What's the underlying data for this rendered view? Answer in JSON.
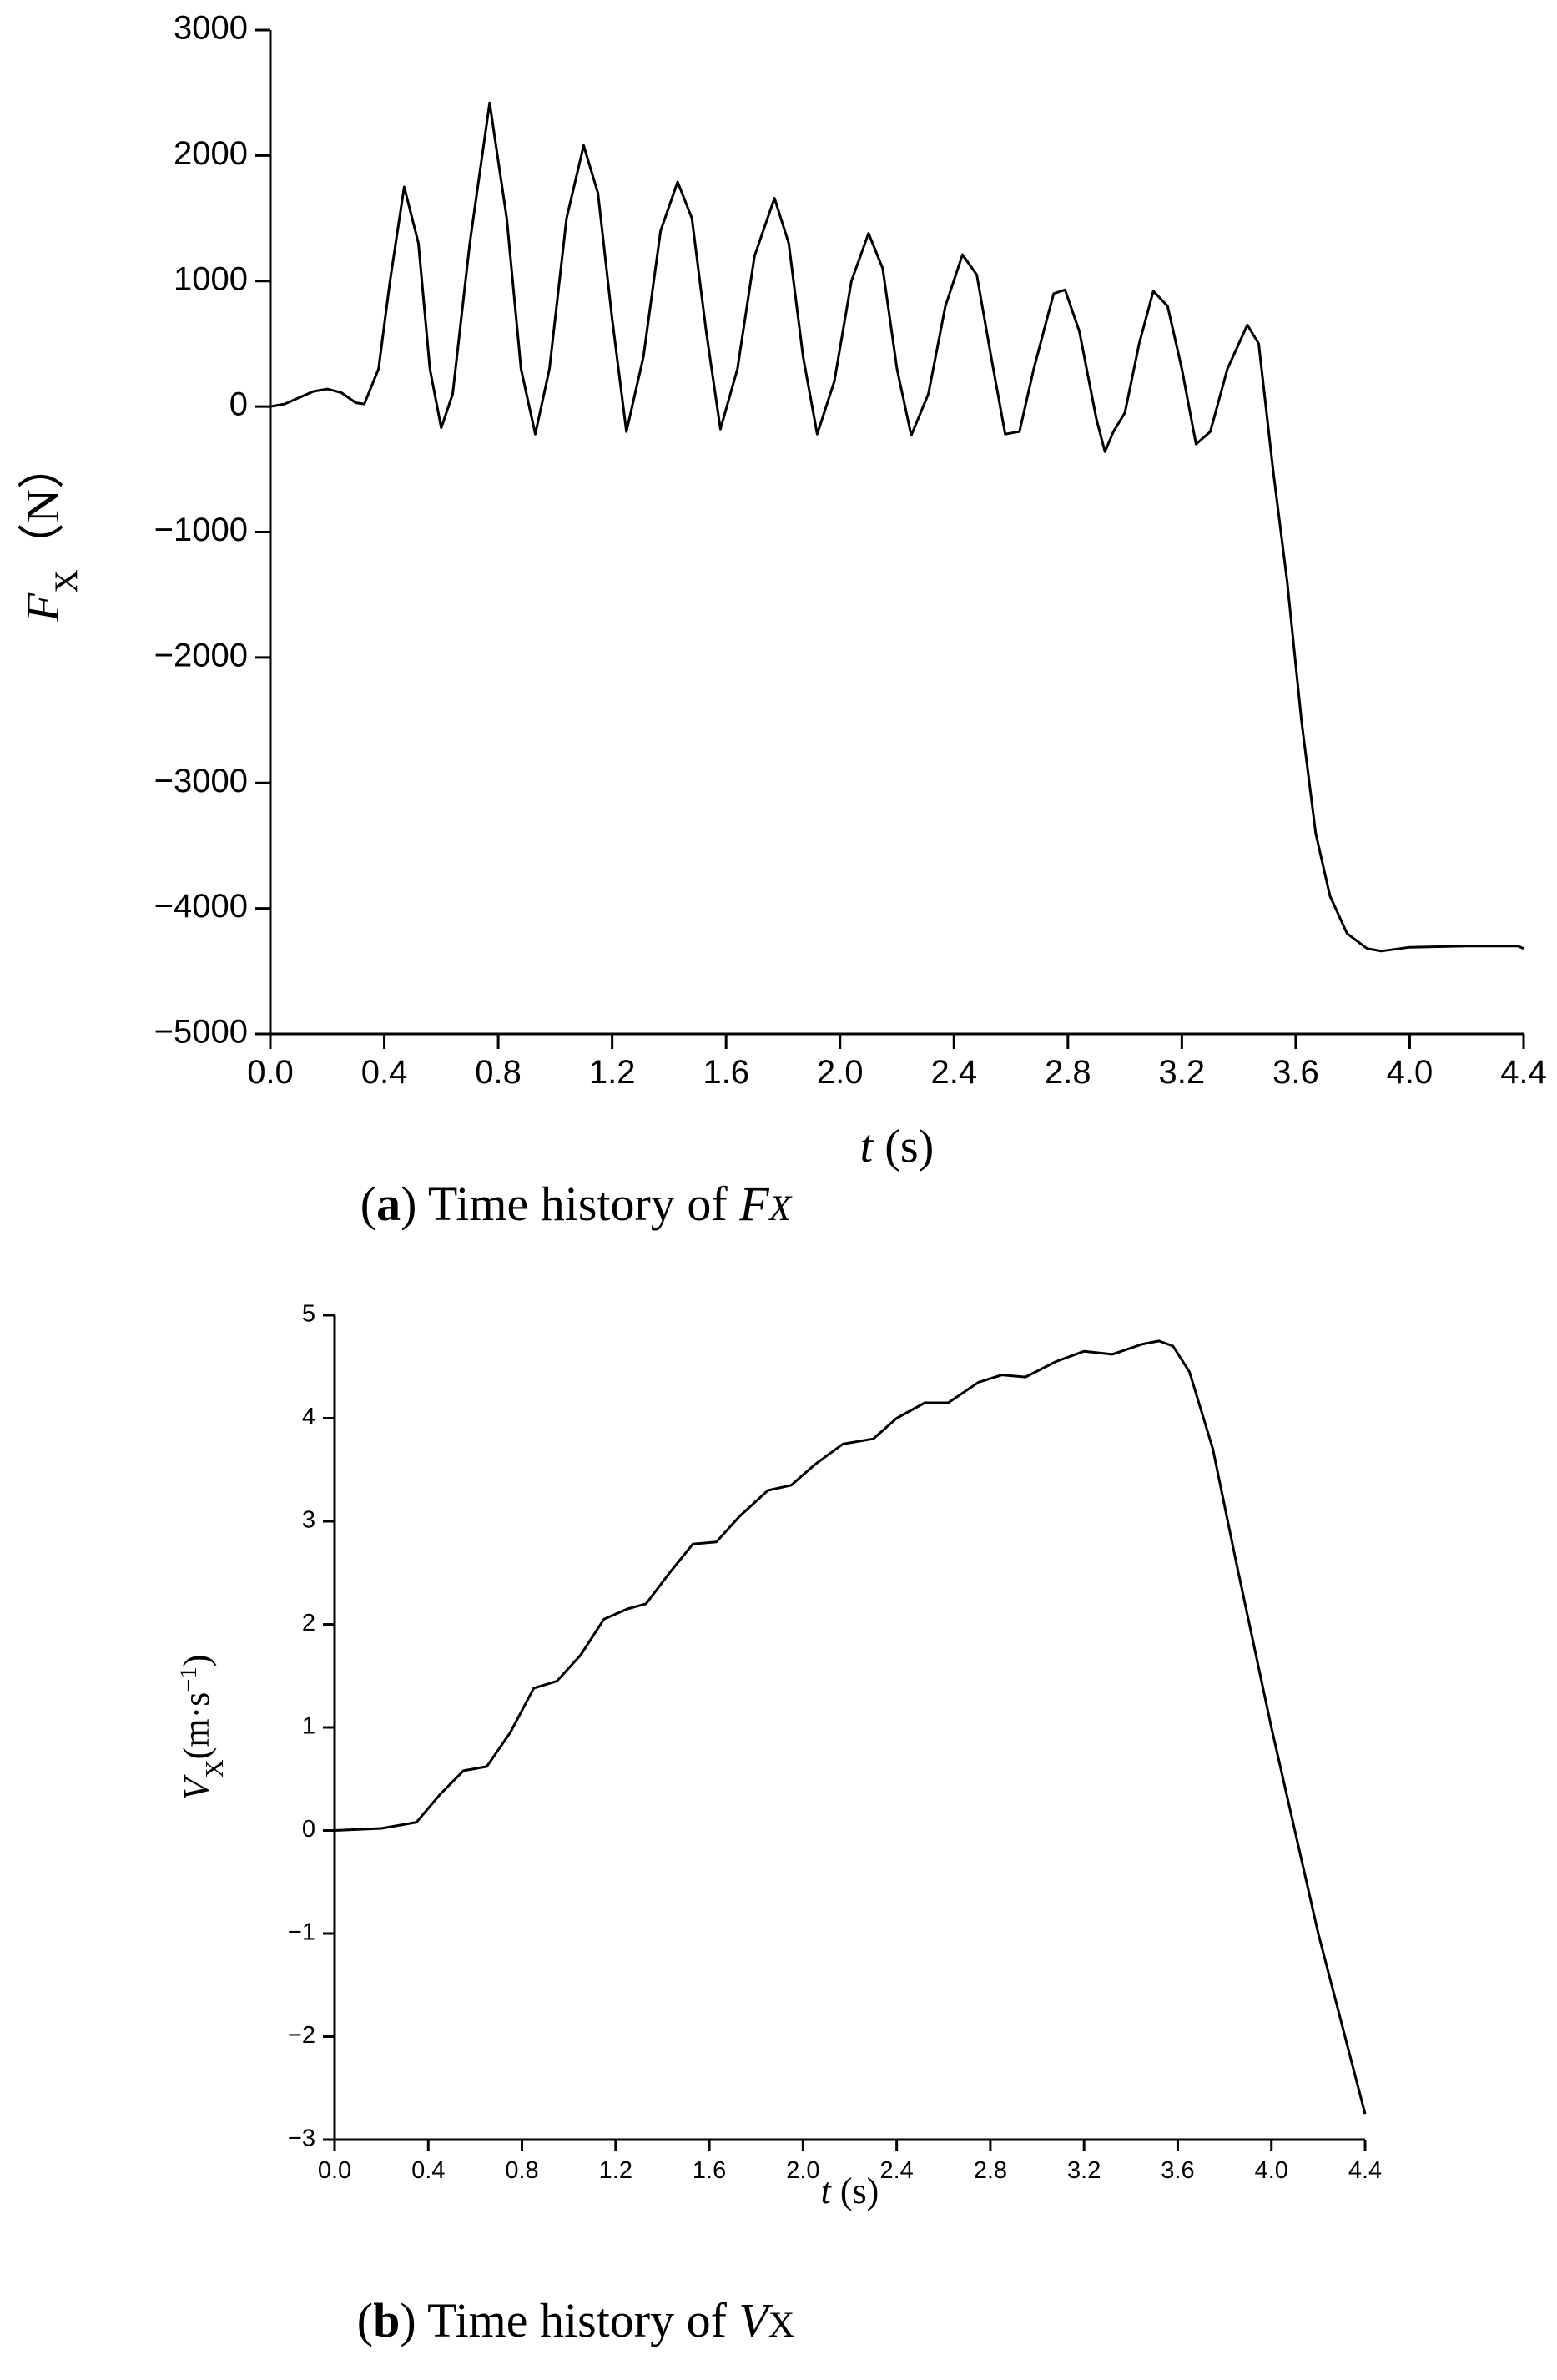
{
  "chart_data": [
    {
      "type": "line",
      "xlabel_parts": [
        "t",
        " (s)"
      ],
      "ylabel_parts": [
        "F",
        "X",
        "（N）"
      ],
      "caption_parts": [
        "(",
        "a",
        ") Time history of ",
        "F",
        "X"
      ],
      "color": "#000000",
      "xlim": [
        0,
        4.4
      ],
      "xticks": [
        {
          "value": 0,
          "label": "0.0"
        },
        0.4,
        0.8,
        1.2,
        1.6,
        {
          "value": 2,
          "label": "2.0"
        },
        2.4,
        2.8,
        3.2,
        3.6,
        {
          "value": 4,
          "label": "4.0"
        },
        4.4
      ],
      "ylim": [
        -5000,
        3000
      ],
      "yticks": [
        {
          "value": -5000,
          "label": "−5000"
        },
        {
          "value": -4000,
          "label": "−4000"
        },
        {
          "value": -3000,
          "label": "−3000"
        },
        {
          "value": -2000,
          "label": "−2000"
        },
        {
          "value": -1000,
          "label": "−1000"
        },
        0,
        1000,
        2000,
        3000
      ],
      "x": [
        0,
        0.05,
        0.1,
        0.15,
        0.2,
        0.25,
        0.3,
        0.33,
        0.38,
        0.42,
        0.47,
        0.52,
        0.56,
        0.6,
        0.64,
        0.7,
        0.77,
        0.83,
        0.88,
        0.93,
        0.98,
        1.04,
        1.1,
        1.15,
        1.2,
        1.25,
        1.31,
        1.37,
        1.43,
        1.48,
        1.53,
        1.58,
        1.64,
        1.7,
        1.77,
        1.82,
        1.87,
        1.92,
        1.98,
        2.04,
        2.1,
        2.15,
        2.2,
        2.25,
        2.31,
        2.37,
        2.43,
        2.48,
        2.53,
        2.58,
        2.63,
        2.68,
        2.75,
        2.79,
        2.84,
        2.9,
        2.93,
        2.96,
        3.0,
        3.05,
        3.1,
        3.15,
        3.2,
        3.25,
        3.3,
        3.36,
        3.43,
        3.47,
        3.52,
        3.57,
        3.62,
        3.67,
        3.72,
        3.78,
        3.85,
        3.9,
        4.0,
        4.2,
        4.38,
        4.4
      ],
      "values": [
        0,
        20,
        70,
        120,
        140,
        110,
        30,
        20,
        300,
        1000,
        1750,
        1300,
        300,
        -170,
        100,
        1300,
        2420,
        1500,
        300,
        -220,
        300,
        1500,
        2080,
        1700,
        700,
        -200,
        400,
        1400,
        1790,
        1500,
        600,
        -180,
        300,
        1200,
        1660,
        1300,
        400,
        -220,
        200,
        1000,
        1380,
        1100,
        300,
        -230,
        100,
        800,
        1210,
        1050,
        400,
        -220,
        -200,
        300,
        900,
        930,
        600,
        -100,
        -360,
        -200,
        -50,
        500,
        920,
        800,
        300,
        -300,
        -200,
        300,
        650,
        500,
        -500,
        -1400,
        -2500,
        -3400,
        -3900,
        -4200,
        -4320,
        -4340,
        -4310,
        -4300,
        -4300,
        -4320
      ]
    },
    {
      "type": "line",
      "xlabel_parts": [
        "t",
        " (s)"
      ],
      "ylabel_parts": [
        "V",
        "X",
        "(m·s",
        "−1",
        ")"
      ],
      "caption_parts": [
        "(",
        "b",
        ") Time history of ",
        "V",
        "X"
      ],
      "color": "#000000",
      "xlim": [
        0,
        4.4
      ],
      "xticks": [
        {
          "value": 0,
          "label": "0.0"
        },
        0.4,
        0.8,
        1.2,
        1.6,
        {
          "value": 2,
          "label": "2.0"
        },
        2.4,
        2.8,
        3.2,
        3.6,
        {
          "value": 4,
          "label": "4.0"
        },
        4.4
      ],
      "ylim": [
        -3,
        5
      ],
      "yticks": [
        {
          "value": -3,
          "label": "−3"
        },
        {
          "value": -2,
          "label": "−2"
        },
        {
          "value": -1,
          "label": "−1"
        },
        0,
        1,
        2,
        3,
        4,
        5
      ],
      "x": [
        0,
        0.2,
        0.35,
        0.45,
        0.55,
        0.65,
        0.75,
        0.85,
        0.95,
        1.05,
        1.15,
        1.25,
        1.33,
        1.43,
        1.53,
        1.63,
        1.73,
        1.85,
        1.95,
        2.05,
        2.17,
        2.3,
        2.4,
        2.52,
        2.62,
        2.75,
        2.85,
        2.95,
        3.08,
        3.2,
        3.32,
        3.45,
        3.52,
        3.58,
        3.65,
        3.75,
        3.85,
        4.0,
        4.2,
        4.4
      ],
      "values": [
        0,
        0.02,
        0.08,
        0.35,
        0.58,
        0.62,
        0.95,
        1.38,
        1.45,
        1.7,
        2.05,
        2.15,
        2.2,
        2.5,
        2.78,
        2.8,
        3.05,
        3.3,
        3.35,
        3.55,
        3.75,
        3.8,
        4.0,
        4.15,
        4.15,
        4.35,
        4.42,
        4.4,
        4.55,
        4.65,
        4.62,
        4.72,
        4.75,
        4.7,
        4.45,
        3.7,
        2.6,
        1.0,
        -1.0,
        -2.75
      ]
    }
  ]
}
